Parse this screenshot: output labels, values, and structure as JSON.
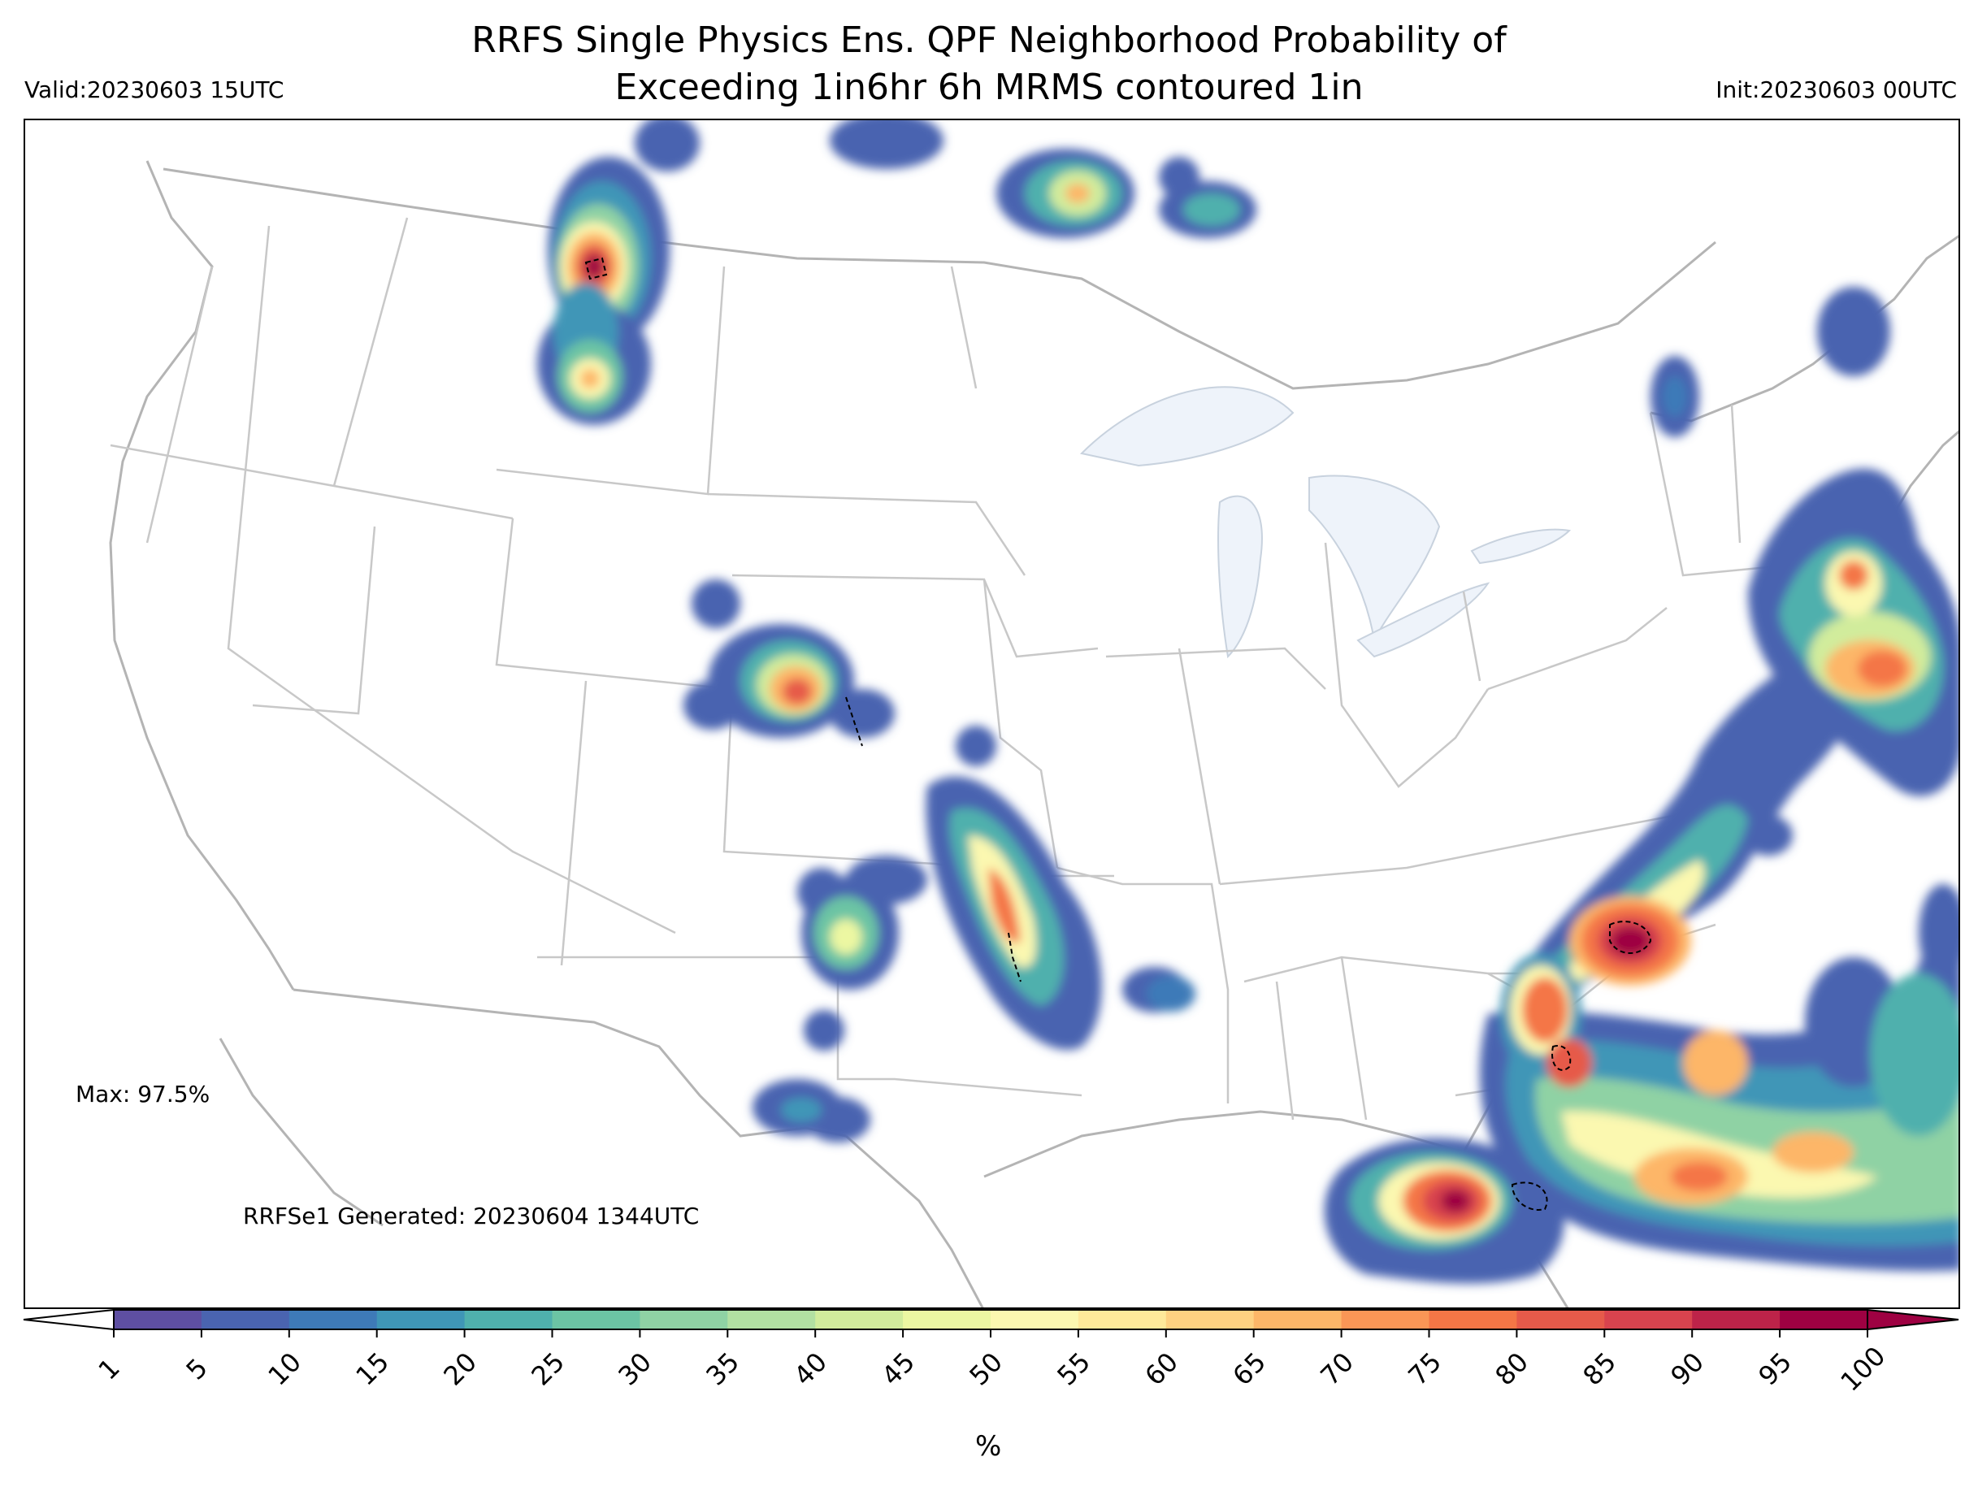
{
  "title_line1": "RRFS Single Physics Ens. QPF Neighborhood Probability of",
  "title_line2": "Exceeding 1in6hr 6h MRMS contoured 1in",
  "valid": "Valid:20230603 15UTC",
  "init": "Init:20230603 00UTC",
  "max_label": "Max: 97.5%",
  "generated": "RRFSe1 Generated: 20230604 1344UTC",
  "colorbar": {
    "unit": "%",
    "ticks": [
      "1",
      "5",
      "10",
      "15",
      "20",
      "25",
      "30",
      "35",
      "40",
      "45",
      "50",
      "55",
      "60",
      "65",
      "70",
      "75",
      "80",
      "85",
      "90",
      "95",
      "100"
    ],
    "colors": [
      "#5e4fa2",
      "#4a64b0",
      "#3e7ab8",
      "#3f96b7",
      "#4fb0ad",
      "#6cc4a4",
      "#8fd2a4",
      "#b2e0a2",
      "#d1ec9c",
      "#ecf7a2",
      "#fbf8b0",
      "#fee99a",
      "#fed181",
      "#fdb668",
      "#fa9656",
      "#f47646",
      "#e65a4a",
      "#d8434e",
      "#bd2349",
      "#9e0142"
    ],
    "extend": "both"
  },
  "features": {
    "state_borders_color": "#c0c0c0",
    "coast_color": "#b4b4b4",
    "lakes_color": "#eef3fa"
  },
  "probability_blobs": [
    {
      "name": "montana-north",
      "peak": 97
    },
    {
      "name": "montana-south",
      "peak": 55
    },
    {
      "name": "canada-border-1",
      "peak": 10
    },
    {
      "name": "canada-border-2",
      "peak": 10
    },
    {
      "name": "canada-ontario",
      "peak": 55
    },
    {
      "name": "canada-ontario-east",
      "peak": 20
    },
    {
      "name": "nebraska-north",
      "peak": 10
    },
    {
      "name": "colorado-kansas",
      "peak": 80
    },
    {
      "name": "new-mexico-east",
      "peak": 45
    },
    {
      "name": "oklahoma-texas",
      "peak": 75
    },
    {
      "name": "texas-west",
      "peak": 20
    },
    {
      "name": "louisiana",
      "peak": 10
    },
    {
      "name": "carolinas",
      "peak": 97
    },
    {
      "name": "georgia-coast",
      "peak": 80
    },
    {
      "name": "gulf-florida",
      "peak": 97
    },
    {
      "name": "atlantic-offshore",
      "peak": 80
    },
    {
      "name": "new-england",
      "peak": 75
    },
    {
      "name": "maine",
      "peak": 10
    }
  ]
}
